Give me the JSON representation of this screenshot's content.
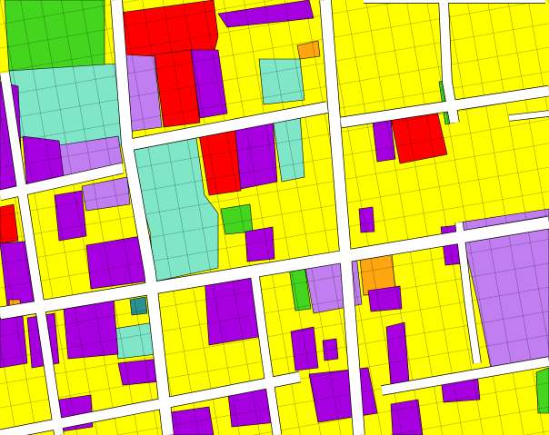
{
  "map": {
    "type": "land-use parcel map",
    "background_color": "#ffffff",
    "parcel_outline_color": "#000000",
    "land_use_colors": {
      "yellow": "#ffff00",
      "purple": "#a600e0",
      "red": "#ff0000",
      "aquamarine": "#7fe6c8",
      "lavender": "#c07ef0",
      "green": "#44d61e",
      "orange": "#ffa510",
      "teal": "#2a9090",
      "street": "#ffffff"
    }
  }
}
